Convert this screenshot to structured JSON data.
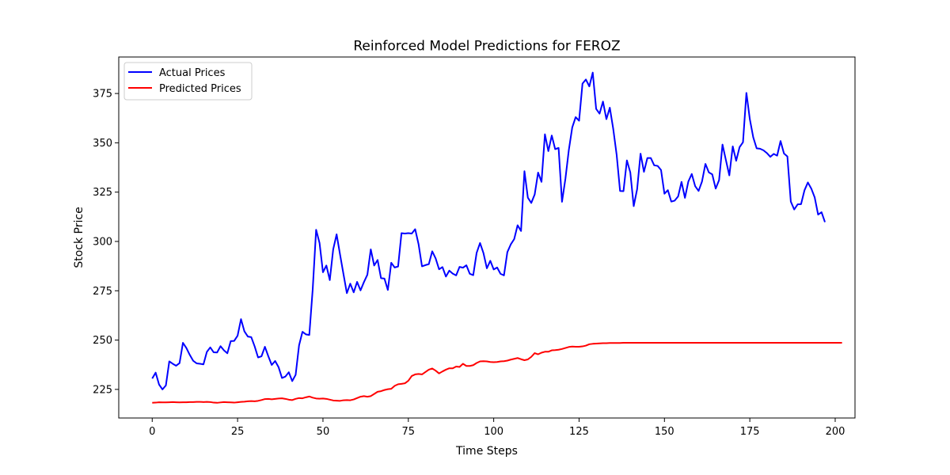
{
  "chart_data": {
    "type": "line",
    "title": "Reinforced Model Predictions for FEROZ",
    "xlabel": "Time Steps",
    "ylabel": "Stock Price",
    "xlim": [
      -9.8,
      205.8
    ],
    "ylim": [
      210.5,
      393.5
    ],
    "xticks": [
      0,
      25,
      50,
      75,
      100,
      125,
      150,
      175,
      200
    ],
    "yticks": [
      225,
      250,
      275,
      300,
      325,
      350,
      375
    ],
    "grid": false,
    "legend": "top-left",
    "series": [
      {
        "name": "Actual Prices",
        "color": "#0000ff",
        "values": [
          230.5,
          233.5,
          227.5,
          225,
          227,
          239.2,
          238,
          237,
          238.3,
          248.6,
          246,
          242.5,
          239.5,
          238.2,
          238,
          237.7,
          244,
          246.3,
          243.8,
          243.7,
          246.9,
          244.8,
          243.3,
          249.5,
          249.6,
          252.2,
          260.6,
          254.4,
          251.8,
          251.5,
          246.8,
          241.2,
          241.8,
          246.6,
          241.8,
          237.4,
          239.4,
          236.3,
          230.8,
          231.5,
          233.7,
          229.2,
          232.4,
          247.3,
          254.2,
          252.9,
          252.6,
          275.8,
          305.9,
          299.2,
          284.4,
          287.8,
          280.4,
          296,
          303.6,
          293.4,
          283.5,
          273.8,
          278.6,
          274.2,
          279.5,
          275.2,
          279.4,
          283.1,
          296,
          287.8,
          290.6,
          281.4,
          281.2,
          275.4,
          289.2,
          286.8,
          287.3,
          304.2,
          304,
          304.2,
          304,
          306.2,
          298.6,
          287.4,
          288,
          288.5,
          295,
          291.4,
          285.9,
          287,
          282.2,
          285.2,
          283.7,
          282.8,
          287.1,
          286.7,
          287.9,
          283.6,
          282.9,
          294.2,
          299.2,
          294.1,
          286.4,
          290.2,
          285.8,
          286.8,
          283.6,
          282.8,
          294.6,
          298.5,
          301.2,
          308.2,
          305.3,
          335.6,
          322.2,
          319.5,
          323.8,
          334.9,
          330.2,
          354.3,
          345.8,
          353.7,
          346.8,
          347.4,
          320.1,
          331.8,
          346.4,
          357.8,
          363,
          361.2,
          380,
          382.1,
          378.6,
          385.6,
          367.2,
          364.8,
          370.9,
          362,
          367.8,
          357.1,
          344,
          325.6,
          325.5,
          341.1,
          335,
          317.9,
          326.5,
          344.5,
          335.3,
          342.3,
          342.3,
          338.6,
          338.3,
          336.2,
          324.2,
          326,
          320.2,
          320.7,
          322.8,
          330.2,
          322.1,
          330.4,
          334.2,
          328,
          325.6,
          330.4,
          339.3,
          335,
          334,
          326.8,
          331.1,
          349.1,
          341.2,
          333.5,
          348.2,
          340.9,
          347.8,
          350.3,
          375.3,
          362,
          352.8,
          347.2,
          347,
          346.2,
          344.8,
          342.9,
          344.4,
          343.5,
          350.9,
          344.6,
          343.1,
          320.2,
          316.2,
          318.8,
          318.9,
          325.9,
          329.9,
          326.8,
          322.3,
          313.6,
          314.8,
          309.8
        ]
      },
      {
        "name": "Predicted Prices",
        "color": "#ff0000",
        "values": [
          218.2,
          218.3,
          218.5,
          218.4,
          218.4,
          218.5,
          218.6,
          218.5,
          218.4,
          218.5,
          218.5,
          218.6,
          218.6,
          218.7,
          218.7,
          218.6,
          218.7,
          218.6,
          218.3,
          218.2,
          218.4,
          218.6,
          218.5,
          218.4,
          218.3,
          218.5,
          218.7,
          218.8,
          219,
          219.1,
          219,
          219.2,
          219.6,
          220.1,
          220.2,
          220,
          220.2,
          220.4,
          220.5,
          220.2,
          219.8,
          219.6,
          220.2,
          220.6,
          220.5,
          221,
          221.4,
          220.8,
          220.4,
          220.3,
          220.4,
          220.2,
          219.8,
          219.4,
          219.3,
          219.2,
          219.5,
          219.6,
          219.5,
          219.9,
          220.6,
          221.3,
          221.6,
          221.3,
          221.6,
          222.7,
          223.8,
          224.1,
          224.7,
          225.1,
          225.3,
          226.8,
          227.6,
          227.8,
          228.1,
          229.4,
          231.8,
          232.6,
          232.8,
          232.6,
          233.8,
          235,
          235.6,
          234.5,
          233.1,
          234.1,
          235,
          235.7,
          235.7,
          236.6,
          236.4,
          238,
          236.9,
          236.9,
          237.3,
          238.4,
          239.2,
          239.3,
          239.2,
          238.9,
          238.8,
          238.9,
          239.2,
          239.3,
          239.6,
          240.1,
          240.5,
          240.9,
          240.3,
          239.8,
          240.2,
          241.5,
          243.4,
          242.8,
          243.6,
          244.1,
          244.1,
          244.8,
          244.9,
          245.1,
          245.5,
          246,
          246.5,
          246.7,
          246.6,
          246.6,
          246.8,
          247.2,
          247.9,
          248.1,
          248.2,
          248.3,
          248.4,
          248.4,
          248.5,
          248.5,
          248.5,
          248.5,
          248.6,
          248.6,
          248.6,
          248.6,
          248.6,
          248.6,
          248.6,
          248.6,
          248.6,
          248.6,
          248.6,
          248.6,
          248.6,
          248.6,
          248.6,
          248.6,
          248.6,
          248.6,
          248.6,
          248.6,
          248.6,
          248.6,
          248.6,
          248.6,
          248.6,
          248.6,
          248.6,
          248.6,
          248.6,
          248.6,
          248.6,
          248.6,
          248.6,
          248.6,
          248.6,
          248.6,
          248.6,
          248.6,
          248.6,
          248.6,
          248.6,
          248.6,
          248.6,
          248.6,
          248.6,
          248.6,
          248.6,
          248.6,
          248.6,
          248.6,
          248.6,
          248.6,
          248.6,
          248.6,
          248.6,
          248.6,
          248.6,
          248.6,
          248.6,
          248.6,
          248.6,
          248.6,
          248.6,
          248.6,
          248.6
        ]
      }
    ]
  }
}
